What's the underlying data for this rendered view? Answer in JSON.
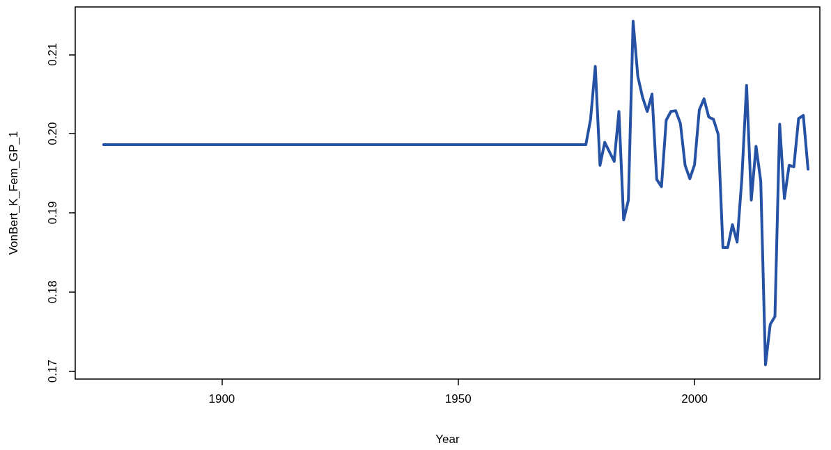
{
  "chart_data": {
    "type": "line",
    "xlabel": "Year",
    "ylabel": "VonBert_K_Fem_GP_1",
    "xlim": [
      1869,
      2026.5
    ],
    "xticks": [
      1900,
      1950,
      2000
    ],
    "ylim": [
      0.169,
      0.216
    ],
    "yticks": [
      0.17,
      0.18,
      0.19,
      {
        "value": 0.2,
        "label": "0.20"
      },
      0.21
    ],
    "grid": false,
    "marker": "none",
    "line_style": "solid",
    "series": [
      {
        "color": "#2652a6",
        "x": [
          1875,
          1977,
          1978,
          1979,
          1980,
          1981,
          1982,
          1983,
          1984,
          1985,
          1986,
          1987,
          1988,
          1989,
          1990,
          1991,
          1992,
          1993,
          1994,
          1995,
          1996,
          1997,
          1998,
          1999,
          2000,
          2001,
          2002,
          2003,
          2004,
          2005,
          2006,
          2007,
          2008,
          2009,
          2010,
          2011,
          2012,
          2013,
          2014,
          2015,
          2016,
          2017,
          2018,
          2019,
          2020,
          2021,
          2022,
          2023,
          2024
        ],
        "values": [
          0.1986,
          0.1986,
          0.2018,
          0.2085,
          0.196,
          0.1989,
          0.1977,
          0.1965,
          0.2028,
          0.1891,
          0.1916,
          0.2142,
          0.2072,
          0.2046,
          0.2028,
          0.205,
          0.1942,
          0.1933,
          0.2017,
          0.2028,
          0.2029,
          0.2013,
          0.196,
          0.1943,
          0.1961,
          0.203,
          0.2044,
          0.2021,
          0.2018,
          0.1999,
          0.1856,
          0.1856,
          0.1885,
          0.1863,
          0.1943,
          0.2061,
          0.1916,
          0.1984,
          0.194,
          0.1708,
          0.1759,
          0.1769,
          0.2012,
          0.1918,
          0.196,
          0.1958,
          0.2019,
          0.2023,
          0.1955
        ]
      }
    ]
  }
}
